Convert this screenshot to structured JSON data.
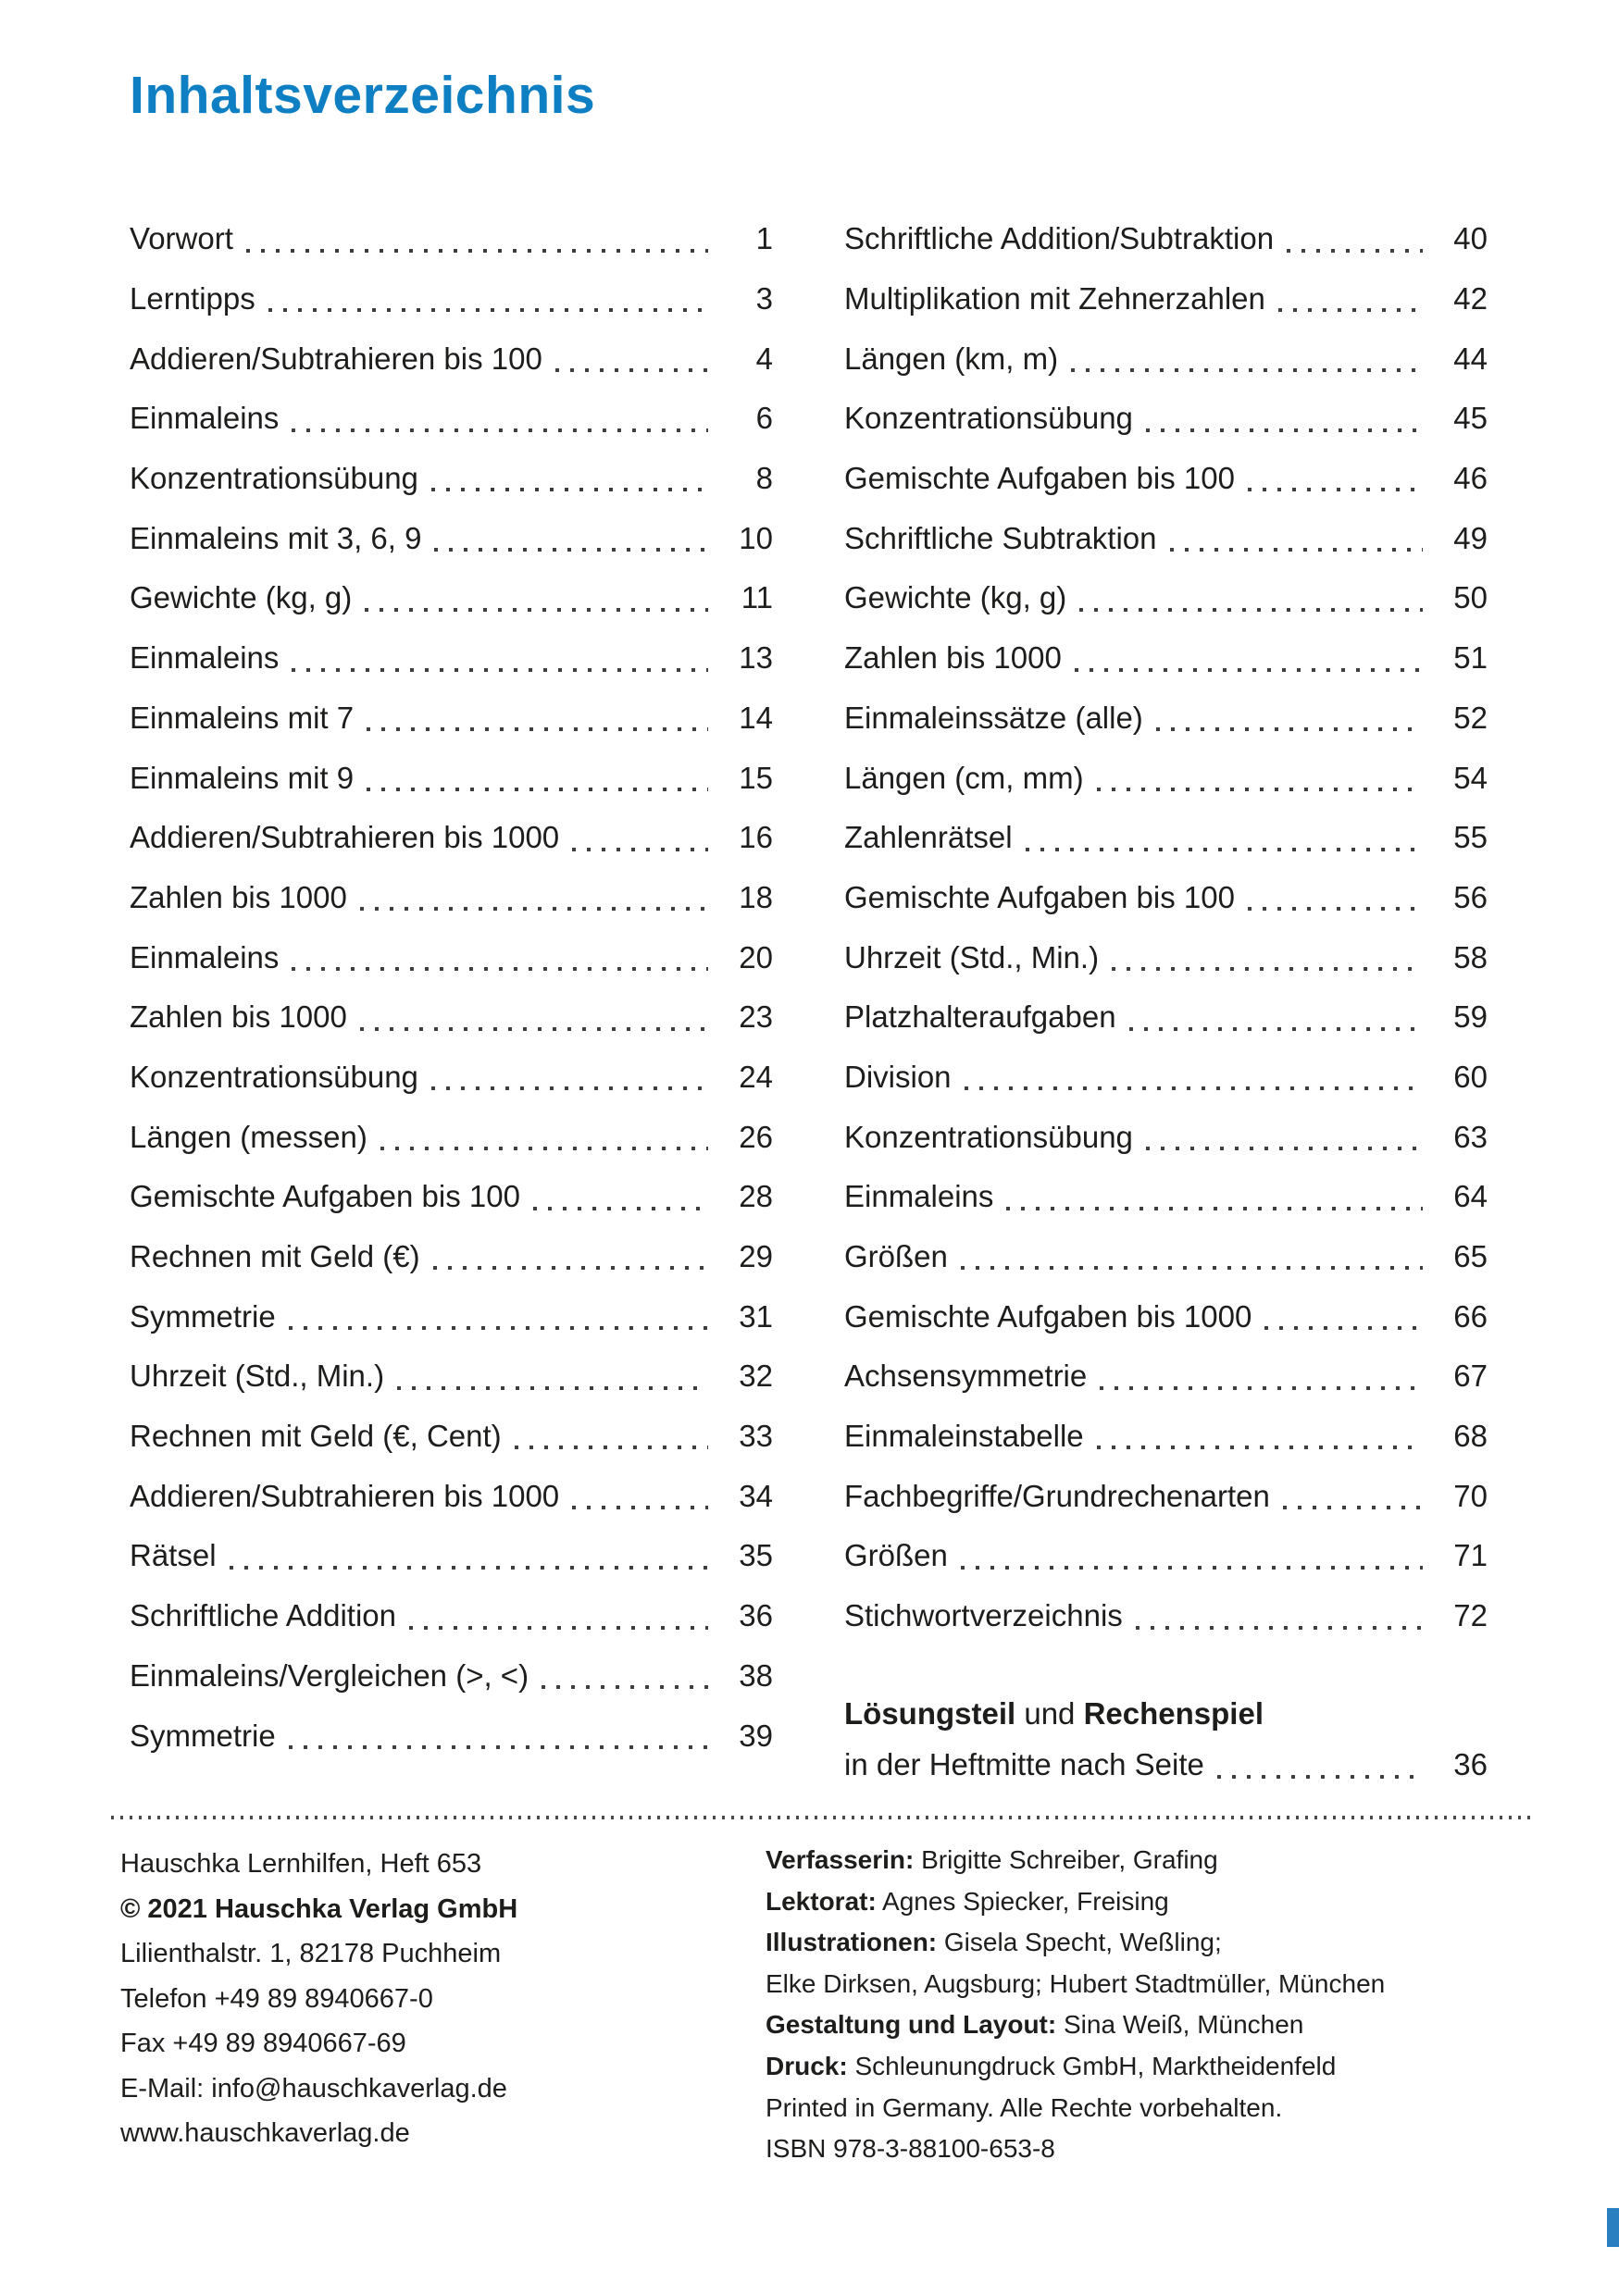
{
  "page": {
    "title": "Inhaltsverzeichnis",
    "accent_color": "#0f7fc4"
  },
  "toc": {
    "left": [
      {
        "label": "Vorwort",
        "page": "1"
      },
      {
        "label": "Lerntipps",
        "page": "3"
      },
      {
        "label": "Addieren/Subtrahieren bis 100",
        "page": "4"
      },
      {
        "label": "Einmaleins",
        "page": "6"
      },
      {
        "label": "Konzentrationsübung",
        "page": "8"
      },
      {
        "label": "Einmaleins mit 3, 6, 9",
        "page": "10"
      },
      {
        "label": "Gewichte (kg, g)",
        "page": "11"
      },
      {
        "label": "Einmaleins",
        "page": "13"
      },
      {
        "label": "Einmaleins mit 7",
        "page": "14"
      },
      {
        "label": "Einmaleins mit 9",
        "page": "15"
      },
      {
        "label": "Addieren/Subtrahieren bis 1000",
        "page": "16"
      },
      {
        "label": "Zahlen bis 1000",
        "page": "18"
      },
      {
        "label": "Einmaleins",
        "page": "20"
      },
      {
        "label": "Zahlen bis 1000",
        "page": "23"
      },
      {
        "label": "Konzentrationsübung",
        "page": "24"
      },
      {
        "label": "Längen (messen)",
        "page": "26"
      },
      {
        "label": "Gemischte Aufgaben bis 100",
        "page": "28"
      },
      {
        "label": "Rechnen mit Geld (€)",
        "page": "29"
      },
      {
        "label": "Symmetrie",
        "page": "31"
      },
      {
        "label": "Uhrzeit (Std., Min.)",
        "page": "32"
      },
      {
        "label": "Rechnen mit Geld (€, Cent)",
        "page": "33"
      },
      {
        "label": "Addieren/Subtrahieren bis 1000",
        "page": "34"
      },
      {
        "label": "Rätsel",
        "page": "35"
      },
      {
        "label": "Schriftliche Addition",
        "page": "36"
      },
      {
        "label": "Einmaleins/Vergleichen (>, <)",
        "page": "38"
      },
      {
        "label": "Symmetrie",
        "page": "39"
      }
    ],
    "right": [
      {
        "label": "Schriftliche Addition/Subtraktion",
        "page": "40"
      },
      {
        "label": "Multiplikation mit Zehnerzahlen",
        "page": "42"
      },
      {
        "label": "Längen (km, m)",
        "page": "44"
      },
      {
        "label": "Konzentrationsübung",
        "page": "45"
      },
      {
        "label": "Gemischte Aufgaben bis 100",
        "page": "46"
      },
      {
        "label": "Schriftliche Subtraktion",
        "page": "49"
      },
      {
        "label": "Gewichte (kg, g)",
        "page": "50"
      },
      {
        "label": "Zahlen bis 1000",
        "page": "51"
      },
      {
        "label": "Einmaleinssätze (alle)",
        "page": "52"
      },
      {
        "label": "Längen (cm, mm)",
        "page": "54"
      },
      {
        "label": "Zahlenrätsel",
        "page": "55"
      },
      {
        "label": "Gemischte Aufgaben bis 100",
        "page": "56"
      },
      {
        "label": "Uhrzeit (Std., Min.)",
        "page": "58"
      },
      {
        "label": "Platzhalteraufgaben",
        "page": "59"
      },
      {
        "label": "Division",
        "page": "60"
      },
      {
        "label": "Konzentrationsübung",
        "page": "63"
      },
      {
        "label": "Einmaleins",
        "page": "64"
      },
      {
        "label": "Größen",
        "page": "65"
      },
      {
        "label": "Gemischte Aufgaben bis 1000",
        "page": "66"
      },
      {
        "label": "Achsensymmetrie",
        "page": "67"
      },
      {
        "label": "Einmaleinstabelle",
        "page": "68"
      },
      {
        "label": "Fachbegriffe/Grundrechenarten",
        "page": "70"
      },
      {
        "label": "Größen",
        "page": "71"
      },
      {
        "label": "Stichwortverzeichnis",
        "page": "72"
      }
    ],
    "special": {
      "bold1": "Lösungsteil",
      "mid": " und ",
      "bold2": "Rechenspiel",
      "line2_label": "in der Heftmitte nach Seite",
      "page": "36"
    }
  },
  "footer": {
    "left": [
      {
        "text": "Hauschka Lernhilfen, Heft 653",
        "bold": false
      },
      {
        "text": "© 2021 Hauschka Verlag GmbH",
        "bold": true
      },
      {
        "text": "Lilienthalstr. 1, 82178 Puchheim",
        "bold": false
      },
      {
        "text": "Telefon +49 89 8940667-0",
        "bold": false
      },
      {
        "text": "Fax +49 89 8940667-69",
        "bold": false
      },
      {
        "text": "E-Mail: info@hauschkaverlag.de",
        "bold": false
      },
      {
        "text": "www.hauschkaverlag.de",
        "bold": false
      }
    ],
    "right": [
      {
        "label": "Verfasserin:",
        "text": " Brigitte Schreiber, Grafing"
      },
      {
        "label": "Lektorat:",
        "text": " Agnes Spiecker, Freising"
      },
      {
        "label": "Illustrationen:",
        "text": " Gisela Specht, Weßling;"
      },
      {
        "label": "",
        "text": "Elke Dirksen, Augsburg; Hubert Stadtmüller, München"
      },
      {
        "label": "Gestaltung und Layout:",
        "text": " Sina Weiß, München"
      },
      {
        "label": "Druck:",
        "text": " Schleunungdruck GmbH, Marktheidenfeld"
      },
      {
        "label": "",
        "text": "Printed in Germany. Alle Rechte vorbehalten."
      },
      {
        "label": "",
        "text": "ISBN 978-3-88100-653-8"
      }
    ]
  }
}
